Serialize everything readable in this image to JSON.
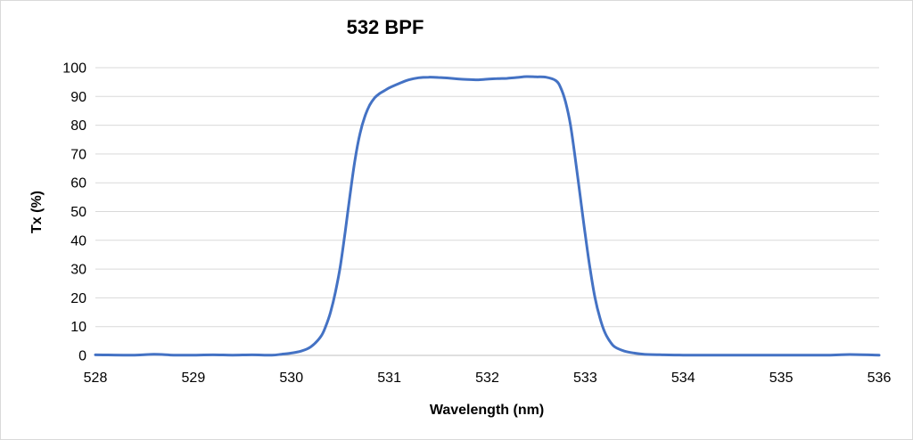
{
  "chart_data": {
    "type": "line",
    "title": "532 BPF",
    "xlabel": "Wavelength (nm)",
    "ylabel": "Tx (%)",
    "xlim": [
      528,
      536
    ],
    "ylim": [
      0,
      100
    ],
    "x_ticks": [
      "528",
      "529",
      "530",
      "531",
      "532",
      "533",
      "534",
      "535",
      "536"
    ],
    "y_ticks": [
      "0",
      "10",
      "20",
      "30",
      "40",
      "50",
      "60",
      "70",
      "80",
      "90",
      "100"
    ],
    "grid": true,
    "legend": "none",
    "series_color": "#4472c4",
    "series": [
      {
        "x": [
          528.0,
          528.4,
          528.6,
          528.8,
          529.0,
          529.2,
          529.4,
          529.6,
          529.8,
          529.9,
          530.0,
          530.1,
          530.2,
          530.3,
          530.35,
          530.4,
          530.45,
          530.5,
          530.55,
          530.6,
          530.65,
          530.7,
          530.75,
          530.8,
          530.85,
          530.9,
          530.95,
          531.0,
          531.1,
          531.2,
          531.3,
          531.4,
          531.5,
          531.6,
          531.7,
          531.8,
          531.9,
          532.0,
          532.1,
          532.2,
          532.3,
          532.4,
          532.5,
          532.6,
          532.7,
          532.75,
          532.8,
          532.85,
          532.9,
          532.95,
          533.0,
          533.05,
          533.1,
          533.15,
          533.2,
          533.25,
          533.3,
          533.4,
          533.5,
          533.6,
          533.8,
          534.0,
          534.5,
          535.0,
          535.5,
          535.7,
          536.0
        ],
        "y": [
          0.2,
          0.1,
          0.4,
          0.1,
          0.1,
          0.2,
          0.1,
          0.2,
          0.1,
          0.4,
          0.8,
          1.5,
          3.0,
          6.5,
          10.0,
          15.0,
          22.0,
          31.0,
          43.0,
          56.0,
          68.0,
          77.0,
          83.0,
          87.0,
          89.5,
          91.0,
          92.0,
          93.0,
          94.5,
          95.8,
          96.5,
          96.7,
          96.6,
          96.4,
          96.1,
          95.9,
          95.8,
          96.0,
          96.2,
          96.3,
          96.6,
          96.9,
          96.8,
          96.7,
          95.5,
          93.0,
          88.0,
          80.0,
          68.0,
          55.0,
          42.0,
          30.0,
          20.0,
          13.0,
          8.0,
          5.0,
          3.0,
          1.5,
          0.8,
          0.4,
          0.2,
          0.1,
          0.1,
          0.1,
          0.1,
          0.3,
          0.1
        ]
      }
    ]
  }
}
